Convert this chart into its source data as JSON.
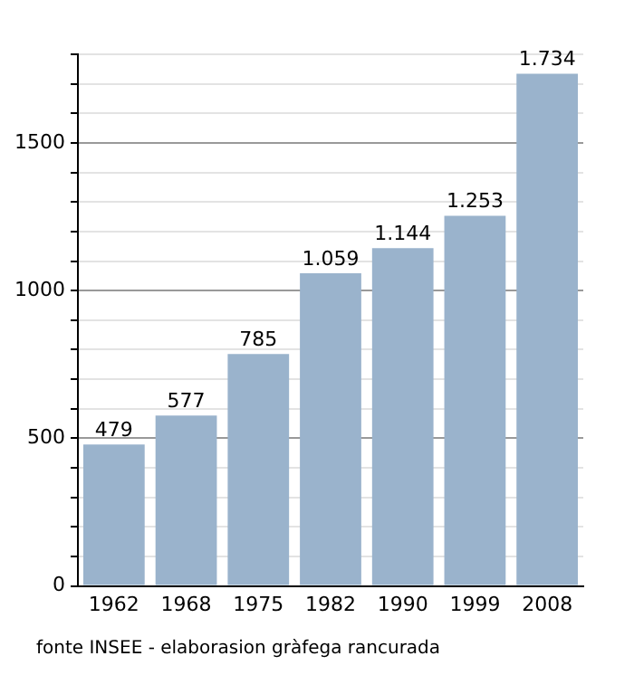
{
  "chart_data": {
    "type": "bar",
    "categories": [
      "1962",
      "1968",
      "1975",
      "1982",
      "1990",
      "1999",
      "2008"
    ],
    "values": [
      479,
      577,
      785,
      1059,
      1144,
      1253,
      1734
    ],
    "value_labels": [
      "479",
      "577",
      "785",
      "1.059",
      "1.144",
      "1.253",
      "1.734"
    ],
    "color": "#9ab3cc",
    "ylim": [
      0,
      1800
    ],
    "yticks": [
      0,
      {
        "value": 100,
        "label": null
      },
      {
        "value": 200,
        "label": null
      },
      {
        "value": 300,
        "label": null
      },
      {
        "value": 400,
        "label": null
      },
      500,
      {
        "value": 600,
        "label": null
      },
      {
        "value": 700,
        "label": null
      },
      {
        "value": 800,
        "label": null
      },
      {
        "value": 900,
        "label": null
      },
      1000,
      {
        "value": 1100,
        "label": null
      },
      {
        "value": 1200,
        "label": null
      },
      {
        "value": 1300,
        "label": null
      },
      {
        "value": 1400,
        "label": null
      },
      1500,
      {
        "value": 1600,
        "label": null
      },
      {
        "value": 1700,
        "label": null
      },
      {
        "value": 1800,
        "label": null
      }
    ],
    "grid": "y",
    "legend": false,
    "annotations": [
      "fonte INSEE - elaborasion gràfega rancurada"
    ]
  }
}
